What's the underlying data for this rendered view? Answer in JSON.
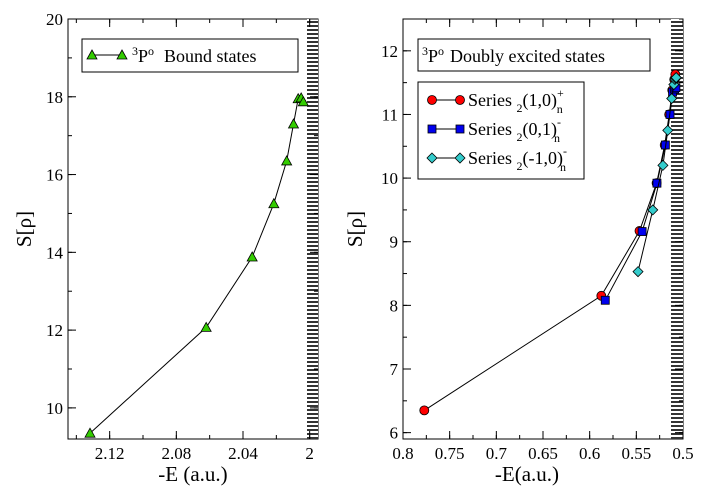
{
  "chart_data": [
    {
      "type": "line",
      "title": "",
      "xlabel": "-E (a.u.)",
      "ylabel": "S[ρ]",
      "xlim": [
        2.145,
        1.995
      ],
      "ylim": [
        9.2,
        20
      ],
      "x_ticks": [
        2.12,
        2.08,
        2.04,
        2
      ],
      "x_tick_labels": [
        "2.12",
        "2.08",
        "2.04",
        "2"
      ],
      "y_ticks": [
        10,
        12,
        14,
        16,
        18,
        20
      ],
      "y_tick_labels": [
        "10",
        "12",
        "14",
        "16",
        "18",
        "20"
      ],
      "legend": {
        "position": "top-right",
        "sup": "3",
        "term": "P",
        "o": "o",
        "label": "Bound states"
      },
      "series": [
        {
          "name": "3Po Bound states",
          "color": "#33cc00",
          "marker": "triangle",
          "x": [
            2.1318,
            2.0621,
            2.0345,
            2.0215,
            2.0138,
            2.0097,
            2.0069,
            2.0051,
            2.0038
          ],
          "y": [
            9.35,
            12.07,
            13.88,
            15.25,
            16.35,
            17.3,
            17.95,
            17.97,
            17.87
          ]
        }
      ]
    },
    {
      "type": "line",
      "title": "",
      "xlabel": "-E(a.u.)",
      "ylabel": "S[ρ]",
      "xlim": [
        0.8,
        0.5
      ],
      "ylim": [
        5.9,
        12.5
      ],
      "x_ticks": [
        0.8,
        0.75,
        0.7,
        0.65,
        0.6,
        0.55,
        0.5
      ],
      "x_tick_labels": [
        "0.8",
        "0.75",
        "0.7",
        "0.65",
        "0.6",
        "0.55",
        "0.5"
      ],
      "y_ticks": [
        6,
        7,
        8,
        9,
        10,
        11,
        12
      ],
      "y_tick_labels": [
        "6",
        "7",
        "8",
        "9",
        "10",
        "11",
        "12"
      ],
      "legend_title": {
        "sup": "3",
        "term": "P",
        "o": "o",
        "label": "Doubly excited states"
      },
      "series": [
        {
          "name": "Series 2(1,0)n+",
          "label": "Series",
          "sub": "2",
          "core": "(1,0)",
          "n": "n",
          "sign": "+",
          "color": "#ff0000",
          "marker": "circle",
          "x": [
            0.7772,
            0.5875,
            0.5466,
            0.5283,
            0.5196,
            0.5148,
            0.5115,
            0.5094,
            0.5082
          ],
          "y": [
            6.35,
            8.15,
            9.17,
            9.92,
            10.52,
            11.0,
            11.38,
            11.55,
            11.63
          ]
        },
        {
          "name": "Series 2(0,1)n-",
          "label": "Series",
          "sub": "2",
          "core": "(0,1)",
          "n": "n",
          "sign": "-",
          "color": "#0000ee",
          "marker": "square",
          "x": [
            0.5833,
            0.5438,
            0.5279,
            0.5189,
            0.5139,
            0.5112,
            0.509,
            0.5076
          ],
          "y": [
            8.08,
            9.16,
            9.92,
            10.52,
            11.0,
            11.35,
            11.4,
            11.42
          ]
        },
        {
          "name": "Series 2(-1,0)n-",
          "label": "Series",
          "sub": "2",
          "core": "(-1,0)",
          "n": "n",
          "sign": "-",
          "color": "#33cccc",
          "marker": "diamond",
          "x": [
            0.5482,
            0.5324,
            0.5215,
            0.5163,
            0.5121,
            0.5098,
            0.5086,
            0.5078,
            0.5073
          ],
          "y": [
            8.53,
            9.5,
            10.2,
            10.75,
            11.25,
            11.47,
            11.55,
            11.57,
            11.58
          ]
        }
      ]
    }
  ]
}
